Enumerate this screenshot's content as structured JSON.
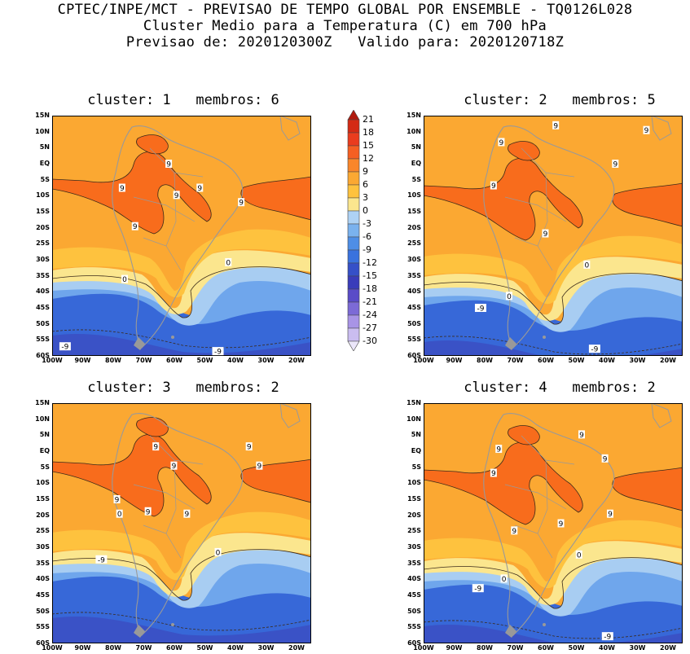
{
  "header": {
    "line1": "CPTEC/INPE/MCT - PREVISAO DE TEMPO GLOBAL POR ENSEMBLE - TQ0126L028",
    "line2": "Cluster Medio para a Temperatura (C) em 700 hPa",
    "line3": "Previsao de: 2020120300Z   Valido para: 2020120718Z"
  },
  "axes": {
    "lat_labels": [
      "15N",
      "10N",
      "5N",
      "EQ",
      "5S",
      "10S",
      "15S",
      "20S",
      "25S",
      "30S",
      "35S",
      "40S",
      "45S",
      "50S",
      "55S",
      "60S"
    ],
    "lon_labels": [
      "100W",
      "90W",
      "80W",
      "70W",
      "60W",
      "50W",
      "40W",
      "30W",
      "20W"
    ]
  },
  "colorbar": {
    "labels": [
      "21",
      "18",
      "15",
      "12",
      "9",
      "6",
      "3",
      "0",
      "-3",
      "-6",
      "-9",
      "-12",
      "-15",
      "-18",
      "-21",
      "-24",
      "-27",
      "-30"
    ],
    "colors": [
      "#b01a0e",
      "#d42a14",
      "#ea3c1e",
      "#f55f22",
      "#f9862a",
      "#fba832",
      "#fec23e",
      "#fbe68e",
      "#aed2f4",
      "#7ab2ee",
      "#4e8ee6",
      "#3a72de",
      "#3550c8",
      "#3a3cba",
      "#5a4cc8",
      "#7c6ad6",
      "#a894e6",
      "#cabdf0",
      "#ebe6fa"
    ]
  },
  "panels": [
    {
      "title": "cluster: 1   membros: 6",
      "contour_labels": [
        "9",
        "9",
        "9",
        "9",
        "9",
        "9",
        "0",
        "0",
        "-9",
        "-9"
      ]
    },
    {
      "title": "cluster: 2   membros: 5",
      "contour_labels": [
        "9",
        "9",
        "9",
        "9",
        "9",
        "9",
        "0",
        "0",
        "-9",
        "-9"
      ]
    },
    {
      "title": "cluster: 3   membros: 2",
      "contour_labels": [
        "9",
        "9",
        "9",
        "9",
        "9",
        "9",
        "9",
        "0",
        "0",
        "-9"
      ]
    },
    {
      "title": "cluster: 4   membros: 2",
      "contour_labels": [
        "9",
        "9",
        "9",
        "9",
        "9",
        "9",
        "9",
        "0",
        "0",
        "-9",
        "-9"
      ]
    }
  ]
}
